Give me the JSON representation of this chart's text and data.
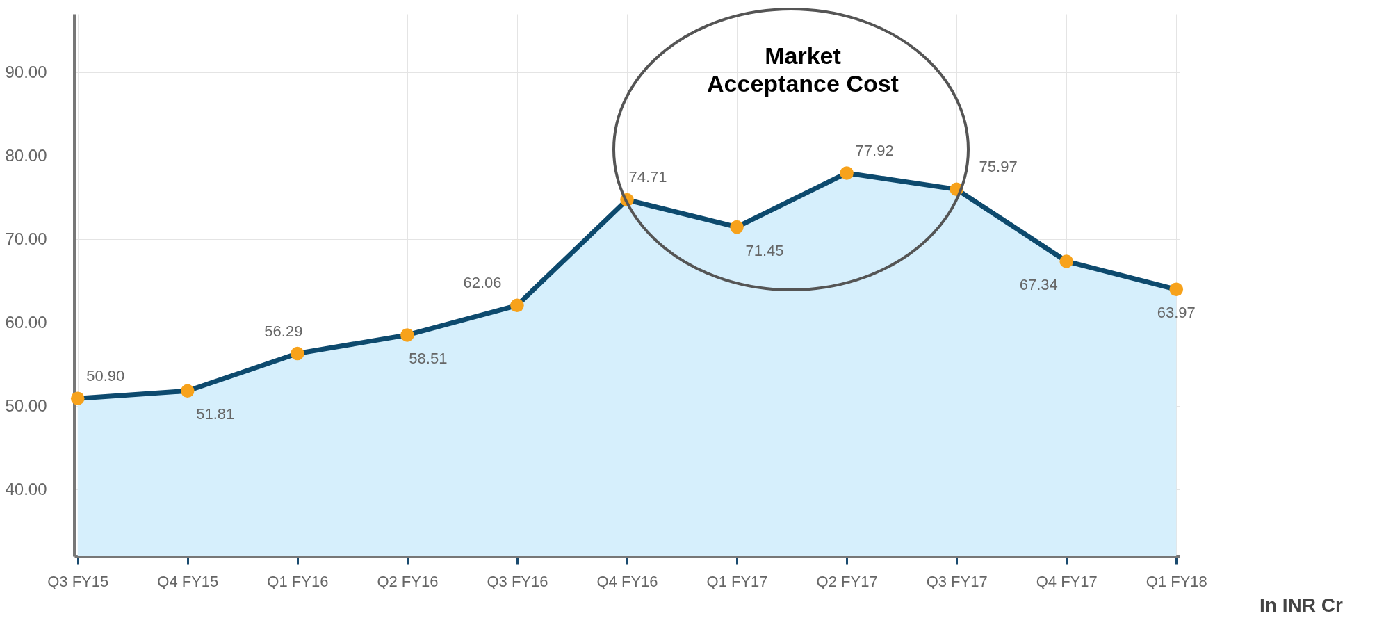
{
  "chart_data": {
    "type": "area",
    "categories": [
      "Q3 FY15",
      "Q4 FY15",
      "Q1 FY16",
      "Q2 FY16",
      "Q3 FY16",
      "Q4 FY16",
      "Q1 FY17",
      "Q2 FY17",
      "Q3 FY17",
      "Q4 FY17",
      "Q1 FY18"
    ],
    "series": [
      {
        "color": "#0d4a6e",
        "values": [
          50.9,
          51.81,
          56.29,
          58.51,
          62.06,
          74.71,
          71.45,
          77.92,
          75.97,
          67.34,
          63.97
        ]
      }
    ],
    "ylim": [
      32,
      97
    ],
    "yticks": [
      {
        "value": 40,
        "label": "40.00"
      },
      {
        "value": 50,
        "label": "50.00"
      },
      {
        "value": 60,
        "label": "60.00"
      },
      {
        "value": 70,
        "label": "70.00"
      },
      {
        "value": 80,
        "label": "80.00"
      },
      {
        "value": 90,
        "label": "90.00"
      }
    ],
    "grid": true,
    "marker": "circle",
    "value_labels": [
      "50.90",
      "51.81",
      "56.29",
      "58.51",
      "62.06",
      "74.71",
      "71.45",
      "77.92",
      "75.97",
      "67.34",
      "63.97"
    ],
    "annotations": [
      "Market Acceptance Cost",
      "In INR Cr"
    ]
  }
}
